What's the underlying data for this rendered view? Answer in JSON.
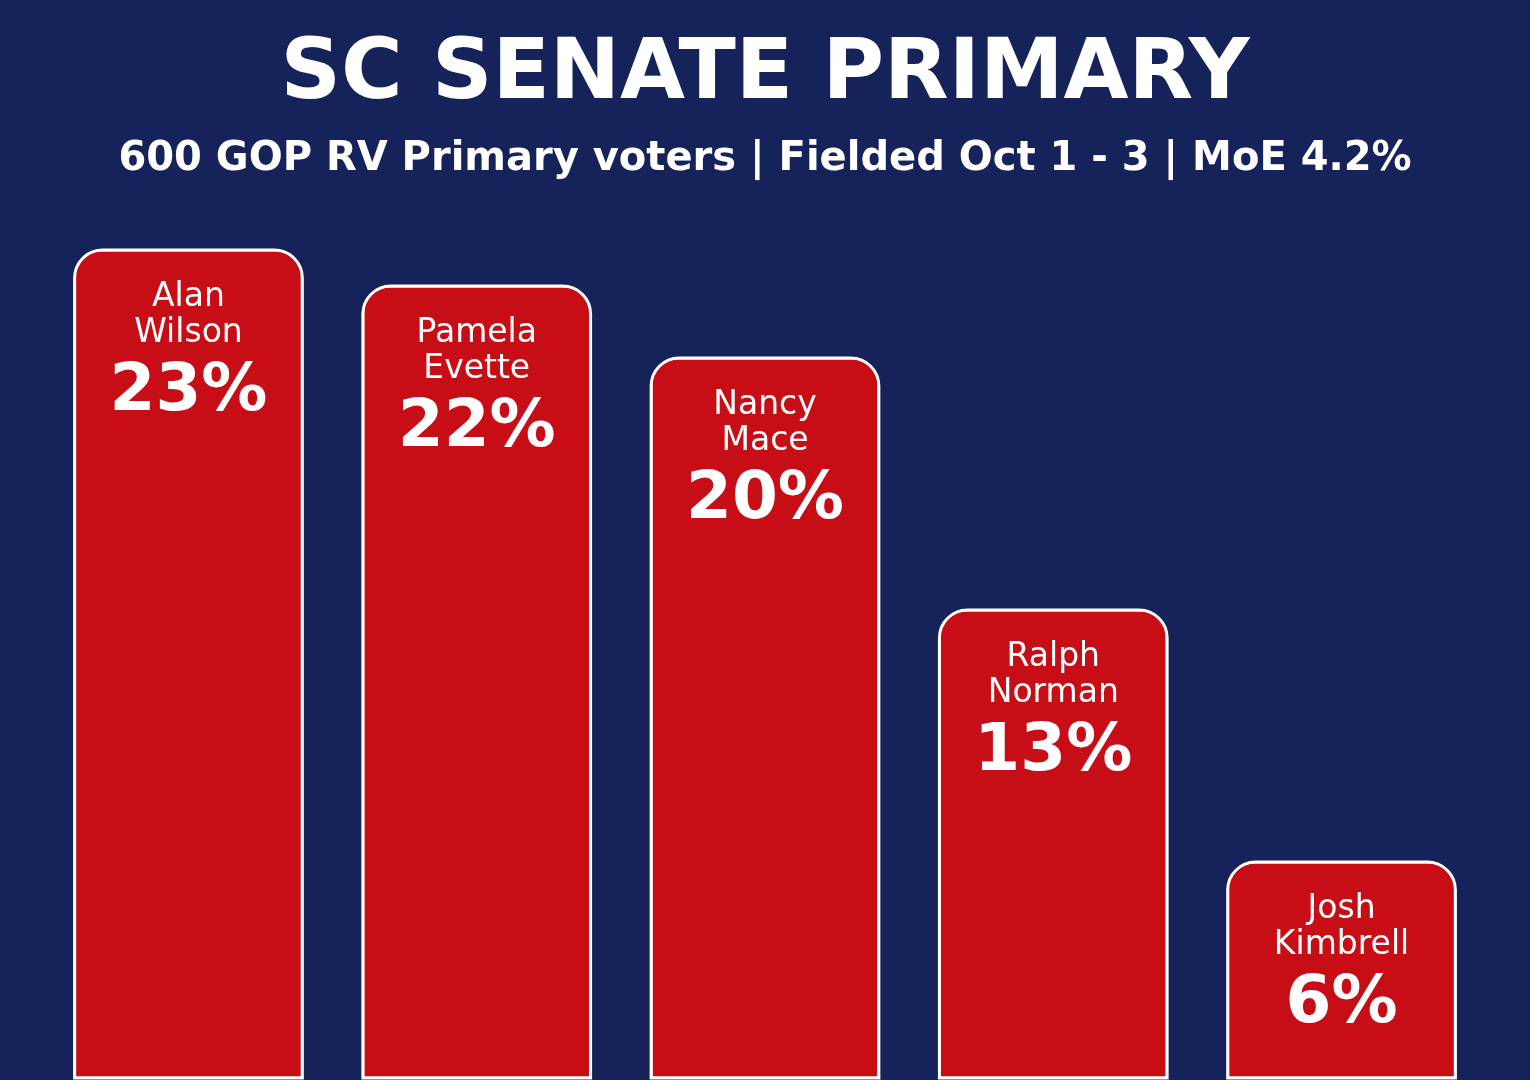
{
  "chart_data": {
    "type": "bar",
    "title": "SC SENATE PRIMARY",
    "subtitle": "600 GOP RV Primary voters | Fielded Oct 1 - 3 | MoE 4.2%",
    "categories": [
      "Alan Wilson",
      "Pamela Evette",
      "Nancy Mace",
      "Ralph Norman",
      "Josh Kimbrell"
    ],
    "values": [
      23,
      22,
      20,
      13,
      6
    ],
    "value_labels": [
      "23%",
      "22%",
      "20%",
      "13%",
      "6%"
    ],
    "color": "#c70e16"
  }
}
